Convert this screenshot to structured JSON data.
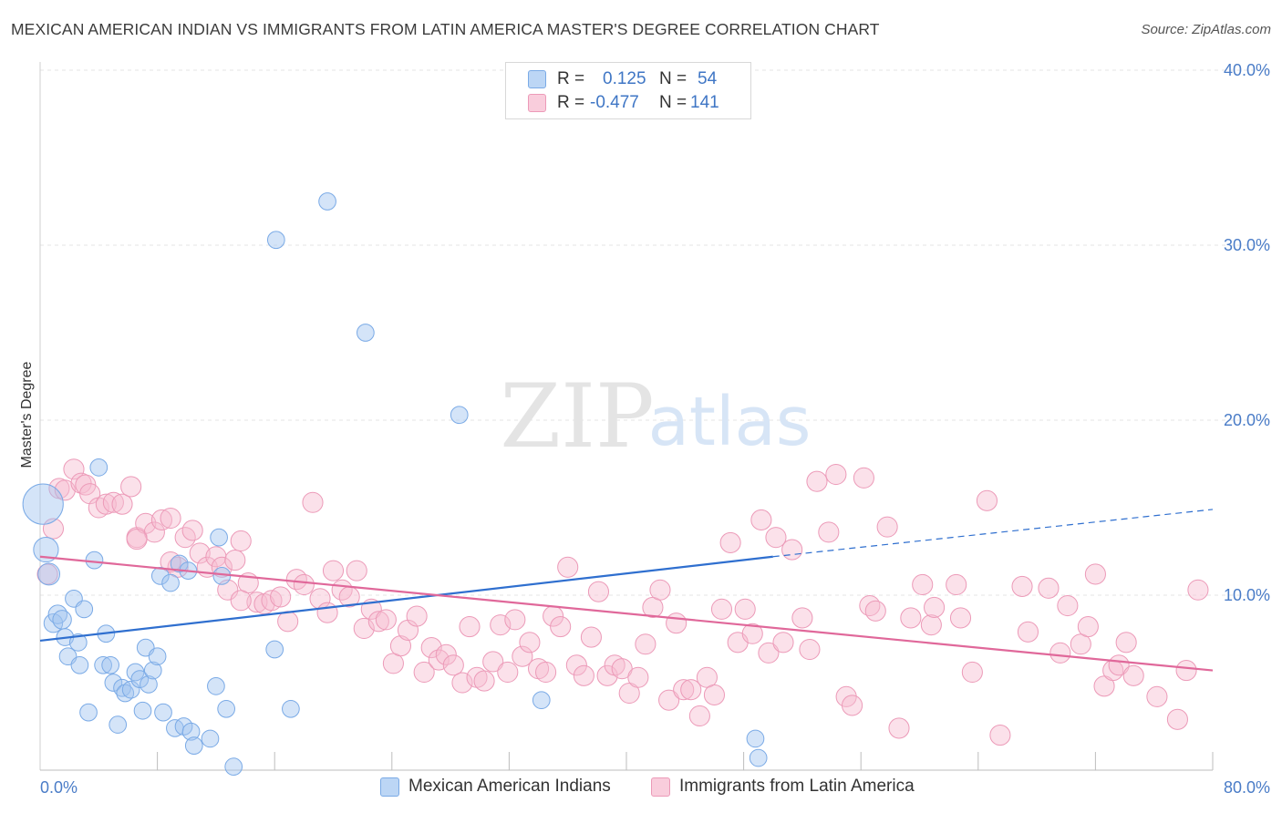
{
  "title": "MEXICAN AMERICAN INDIAN VS IMMIGRANTS FROM LATIN AMERICA MASTER'S DEGREE CORRELATION CHART",
  "source": "Source: ZipAtlas.com",
  "watermark": {
    "zip": "ZIP",
    "atlas": "atlas"
  },
  "legend": {
    "rows": [
      {
        "r_label": "R =",
        "r_value": "0.125",
        "n_label": "N =",
        "n_value": "54",
        "color": "#a9c8f0",
        "border": "#6f9fd8"
      },
      {
        "r_label": "R =",
        "r_value": "-0.477",
        "n_label": "N =",
        "n_value": "141",
        "color": "#f7bcd0",
        "border": "#e792b1"
      }
    ]
  },
  "bottom_legend": [
    "Mexican American Indians",
    "Immigrants from Latin America"
  ],
  "chart_data": {
    "type": "scatter",
    "xlabel": "",
    "ylabel": "Master's Degree",
    "xlim": [
      0,
      80
    ],
    "ylim": [
      0,
      40
    ],
    "x_tick_labels": [
      "0.0%",
      "80.0%"
    ],
    "y_tick_labels": [
      "10.0%",
      "20.0%",
      "30.0%",
      "40.0%"
    ],
    "y_ticks": [
      10,
      20,
      30,
      40
    ],
    "grid": true,
    "series": [
      {
        "name": "Mexican American Indians",
        "color": "#7aaae6",
        "fill": "rgba(160,196,240,0.45)",
        "trend": {
          "x0": 0,
          "y0": 7.4,
          "x1": 50,
          "y1": 12.2,
          "dash_to_x": 80,
          "dash_to_y": 14.9,
          "color": "#2f6fcf"
        },
        "points": [
          [
            0.2,
            15.2,
            2.6
          ],
          [
            0.4,
            12.6,
            1.6
          ],
          [
            0.6,
            11.2,
            1.4
          ],
          [
            0.9,
            8.4,
            1.2
          ],
          [
            1.2,
            8.9,
            1.2
          ],
          [
            1.5,
            8.6,
            1.2
          ],
          [
            1.7,
            7.6,
            1.1
          ],
          [
            1.9,
            6.5,
            1.1
          ],
          [
            2.3,
            9.8,
            1.1
          ],
          [
            2.6,
            7.3,
            1.1
          ],
          [
            2.7,
            6.0,
            1.1
          ],
          [
            3.0,
            9.2,
            1.1
          ],
          [
            3.3,
            3.3,
            1.1
          ],
          [
            3.7,
            12.0,
            1.1
          ],
          [
            4.0,
            17.3,
            1.1
          ],
          [
            4.3,
            6.0,
            1.1
          ],
          [
            4.5,
            7.8,
            1.1
          ],
          [
            4.8,
            6.0,
            1.1
          ],
          [
            5.0,
            5.0,
            1.1
          ],
          [
            5.3,
            2.6,
            1.1
          ],
          [
            5.6,
            4.7,
            1.1
          ],
          [
            5.8,
            4.4,
            1.1
          ],
          [
            6.2,
            4.6,
            1.1
          ],
          [
            6.5,
            5.6,
            1.1
          ],
          [
            6.8,
            5.2,
            1.1
          ],
          [
            7.0,
            3.4,
            1.1
          ],
          [
            7.2,
            7.0,
            1.1
          ],
          [
            7.4,
            4.9,
            1.1
          ],
          [
            7.7,
            5.7,
            1.1
          ],
          [
            8.0,
            6.5,
            1.1
          ],
          [
            8.2,
            11.1,
            1.1
          ],
          [
            8.4,
            3.3,
            1.1
          ],
          [
            8.9,
            10.7,
            1.1
          ],
          [
            9.2,
            2.4,
            1.1
          ],
          [
            9.5,
            11.8,
            1.1
          ],
          [
            9.8,
            2.5,
            1.1
          ],
          [
            10.1,
            11.4,
            1.1
          ],
          [
            10.3,
            2.2,
            1.1
          ],
          [
            10.5,
            1.4,
            1.1
          ],
          [
            11.6,
            1.8,
            1.1
          ],
          [
            12.0,
            4.8,
            1.1
          ],
          [
            12.2,
            13.3,
            1.1
          ],
          [
            12.4,
            11.1,
            1.1
          ],
          [
            12.7,
            3.5,
            1.1
          ],
          [
            13.2,
            0.2,
            1.1
          ],
          [
            16.1,
            30.3,
            1.1
          ],
          [
            16.0,
            6.9,
            1.1
          ],
          [
            17.1,
            3.5,
            1.1
          ],
          [
            19.6,
            32.5,
            1.1
          ],
          [
            22.2,
            25.0,
            1.1
          ],
          [
            28.6,
            20.3,
            1.1
          ],
          [
            34.2,
            4.0,
            1.1
          ],
          [
            48.8,
            1.8,
            1.1
          ],
          [
            49.0,
            0.7,
            1.1
          ]
        ]
      },
      {
        "name": "Immigrants from Latin America",
        "color": "#ec9ab8",
        "fill": "rgba(247,188,208,0.45)",
        "trend": {
          "x0": 0,
          "y0": 12.2,
          "x1": 80,
          "y1": 5.7,
          "color": "#e0689a"
        },
        "points": [
          [
            0.5,
            11.2,
            1.3
          ],
          [
            0.9,
            13.8,
            1.3
          ],
          [
            1.3,
            16.1,
            1.3
          ],
          [
            1.7,
            16.0,
            1.3
          ],
          [
            2.3,
            17.2,
            1.3
          ],
          [
            2.8,
            16.4,
            1.3
          ],
          [
            3.1,
            16.3,
            1.3
          ],
          [
            3.4,
            15.8,
            1.3
          ],
          [
            4.0,
            15.0,
            1.3
          ],
          [
            4.5,
            15.2,
            1.3
          ],
          [
            5.0,
            15.3,
            1.3
          ],
          [
            5.6,
            15.2,
            1.3
          ],
          [
            6.2,
            16.2,
            1.3
          ],
          [
            6.6,
            13.3,
            1.3
          ],
          [
            7.2,
            14.1,
            1.3
          ],
          [
            7.8,
            13.6,
            1.3
          ],
          [
            8.3,
            14.3,
            1.3
          ],
          [
            8.9,
            14.4,
            1.3
          ],
          [
            9.4,
            11.6,
            1.3
          ],
          [
            9.9,
            13.3,
            1.3
          ],
          [
            10.4,
            13.7,
            1.3
          ],
          [
            10.9,
            12.4,
            1.3
          ],
          [
            11.4,
            11.6,
            1.3
          ],
          [
            12.0,
            12.2,
            1.3
          ],
          [
            12.4,
            11.6,
            1.3
          ],
          [
            12.8,
            10.3,
            1.3
          ],
          [
            13.3,
            12.0,
            1.3
          ],
          [
            13.7,
            13.1,
            1.3
          ],
          [
            14.2,
            10.7,
            1.3
          ],
          [
            14.8,
            9.6,
            1.3
          ],
          [
            15.3,
            9.5,
            1.3
          ],
          [
            15.8,
            9.7,
            1.3
          ],
          [
            16.4,
            9.9,
            1.3
          ],
          [
            16.9,
            8.5,
            1.3
          ],
          [
            17.5,
            10.9,
            1.3
          ],
          [
            18.0,
            10.6,
            1.3
          ],
          [
            18.6,
            15.3,
            1.3
          ],
          [
            19.1,
            9.8,
            1.3
          ],
          [
            19.6,
            9.0,
            1.3
          ],
          [
            20.0,
            11.4,
            1.3
          ],
          [
            20.6,
            10.3,
            1.3
          ],
          [
            21.1,
            9.9,
            1.3
          ],
          [
            21.6,
            11.4,
            1.3
          ],
          [
            22.1,
            8.1,
            1.3
          ],
          [
            22.6,
            9.2,
            1.3
          ],
          [
            23.1,
            8.5,
            1.3
          ],
          [
            23.6,
            8.6,
            1.3
          ],
          [
            24.1,
            6.1,
            1.3
          ],
          [
            24.6,
            7.1,
            1.3
          ],
          [
            25.1,
            8.0,
            1.3
          ],
          [
            25.7,
            8.8,
            1.3
          ],
          [
            26.2,
            5.6,
            1.3
          ],
          [
            26.7,
            7.0,
            1.3
          ],
          [
            27.2,
            6.3,
            1.3
          ],
          [
            27.7,
            6.6,
            1.3
          ],
          [
            28.2,
            6.0,
            1.3
          ],
          [
            28.8,
            5.0,
            1.3
          ],
          [
            29.3,
            8.2,
            1.3
          ],
          [
            29.8,
            5.3,
            1.3
          ],
          [
            30.3,
            5.1,
            1.3
          ],
          [
            30.9,
            6.2,
            1.3
          ],
          [
            31.4,
            8.3,
            1.3
          ],
          [
            31.9,
            5.6,
            1.3
          ],
          [
            32.4,
            8.6,
            1.3
          ],
          [
            32.9,
            6.5,
            1.3
          ],
          [
            33.4,
            7.3,
            1.3
          ],
          [
            34.0,
            5.8,
            1.3
          ],
          [
            34.5,
            5.6,
            1.3
          ],
          [
            35.0,
            8.8,
            1.3
          ],
          [
            35.5,
            8.2,
            1.3
          ],
          [
            36.0,
            11.6,
            1.3
          ],
          [
            36.6,
            6.0,
            1.3
          ],
          [
            37.1,
            5.4,
            1.3
          ],
          [
            37.6,
            7.6,
            1.3
          ],
          [
            38.1,
            10.2,
            1.3
          ],
          [
            38.7,
            5.4,
            1.3
          ],
          [
            39.2,
            6.0,
            1.3
          ],
          [
            39.7,
            5.8,
            1.3
          ],
          [
            40.2,
            4.4,
            1.3
          ],
          [
            40.8,
            5.3,
            1.3
          ],
          [
            41.3,
            7.2,
            1.3
          ],
          [
            41.8,
            9.3,
            1.3
          ],
          [
            42.3,
            10.3,
            1.3
          ],
          [
            42.9,
            4.0,
            1.3
          ],
          [
            43.4,
            8.4,
            1.3
          ],
          [
            43.9,
            4.6,
            1.3
          ],
          [
            44.4,
            4.6,
            1.3
          ],
          [
            45.0,
            3.1,
            1.3
          ],
          [
            45.5,
            5.3,
            1.3
          ],
          [
            46.0,
            4.3,
            1.3
          ],
          [
            46.5,
            9.2,
            1.3
          ],
          [
            47.1,
            13.0,
            1.3
          ],
          [
            47.6,
            7.3,
            1.3
          ],
          [
            48.1,
            9.2,
            1.3
          ],
          [
            48.6,
            7.8,
            1.3
          ],
          [
            49.2,
            14.3,
            1.3
          ],
          [
            49.7,
            6.7,
            1.3
          ],
          [
            50.2,
            13.3,
            1.3
          ],
          [
            50.7,
            7.3,
            1.3
          ],
          [
            51.3,
            12.6,
            1.3
          ],
          [
            52.0,
            8.7,
            1.3
          ],
          [
            52.5,
            6.9,
            1.3
          ],
          [
            53.0,
            16.5,
            1.3
          ],
          [
            53.8,
            13.6,
            1.3
          ],
          [
            54.3,
            16.9,
            1.3
          ],
          [
            55.0,
            4.2,
            1.3
          ],
          [
            55.4,
            3.7,
            1.3
          ],
          [
            56.2,
            16.7,
            1.3
          ],
          [
            56.6,
            9.4,
            1.3
          ],
          [
            57.0,
            9.1,
            1.3
          ],
          [
            57.8,
            13.9,
            1.3
          ],
          [
            58.6,
            2.4,
            1.3
          ],
          [
            59.4,
            8.7,
            1.3
          ],
          [
            60.2,
            10.6,
            1.3
          ],
          [
            60.8,
            8.3,
            1.3
          ],
          [
            61.0,
            9.3,
            1.3
          ],
          [
            62.5,
            10.6,
            1.3
          ],
          [
            62.8,
            8.7,
            1.3
          ],
          [
            63.6,
            5.6,
            1.3
          ],
          [
            64.6,
            15.4,
            1.3
          ],
          [
            65.5,
            2.0,
            1.3
          ],
          [
            67.0,
            10.5,
            1.3
          ],
          [
            67.4,
            7.9,
            1.3
          ],
          [
            68.8,
            10.4,
            1.3
          ],
          [
            69.6,
            6.7,
            1.3
          ],
          [
            70.1,
            9.4,
            1.3
          ],
          [
            71.0,
            7.2,
            1.3
          ],
          [
            71.5,
            8.2,
            1.3
          ],
          [
            72.0,
            11.2,
            1.3
          ],
          [
            72.6,
            4.8,
            1.3
          ],
          [
            73.2,
            5.7,
            1.3
          ],
          [
            73.6,
            6.0,
            1.3
          ],
          [
            74.1,
            7.3,
            1.3
          ],
          [
            74.6,
            5.4,
            1.3
          ],
          [
            76.2,
            4.2,
            1.3
          ],
          [
            77.6,
            2.9,
            1.3
          ],
          [
            78.2,
            5.7,
            1.3
          ],
          [
            79.0,
            10.3,
            1.3
          ],
          [
            6.6,
            13.2,
            1.3
          ],
          [
            8.9,
            11.9,
            1.3
          ],
          [
            13.7,
            9.7,
            1.3
          ]
        ]
      }
    ]
  }
}
